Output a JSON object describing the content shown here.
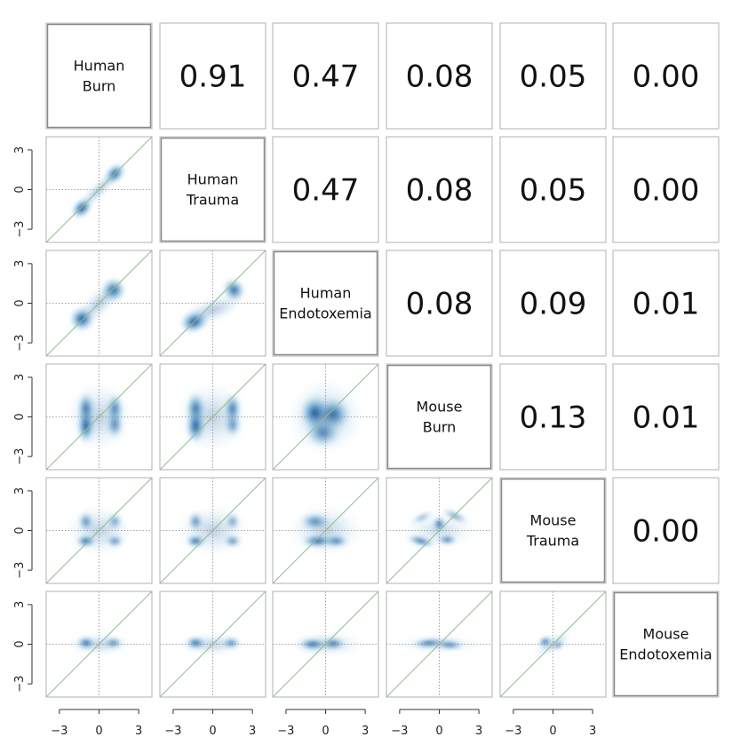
{
  "chart_data": {
    "type": "scatter",
    "subtype": "pairs-matrix-density",
    "title": "",
    "variables": [
      "Human Burn",
      "Human Trauma",
      "Human Endotoxemia",
      "Mouse Burn",
      "Mouse Trauma",
      "Mouse Endotoxemia"
    ],
    "diagonal_labels": [
      [
        "Human",
        "Burn"
      ],
      [
        "Human",
        "Trauma"
      ],
      [
        "Human",
        "Endotoxemia"
      ],
      [
        "Mouse",
        "Burn"
      ],
      [
        "Mouse",
        "Trauma"
      ],
      [
        "Mouse",
        "Endotoxemia"
      ]
    ],
    "upper_triangle_values": [
      {
        "row": 1,
        "col": 2,
        "value": "0.91"
      },
      {
        "row": 1,
        "col": 3,
        "value": "0.47"
      },
      {
        "row": 1,
        "col": 4,
        "value": "0.08"
      },
      {
        "row": 1,
        "col": 5,
        "value": "0.05"
      },
      {
        "row": 1,
        "col": 6,
        "value": "0.00"
      },
      {
        "row": 2,
        "col": 3,
        "value": "0.47"
      },
      {
        "row": 2,
        "col": 4,
        "value": "0.08"
      },
      {
        "row": 2,
        "col": 5,
        "value": "0.05"
      },
      {
        "row": 2,
        "col": 6,
        "value": "0.00"
      },
      {
        "row": 3,
        "col": 4,
        "value": "0.08"
      },
      {
        "row": 3,
        "col": 5,
        "value": "0.09"
      },
      {
        "row": 3,
        "col": 6,
        "value": "0.01"
      },
      {
        "row": 4,
        "col": 5,
        "value": "0.13"
      },
      {
        "row": 4,
        "col": 6,
        "value": "0.01"
      },
      {
        "row": 5,
        "col": 6,
        "value": "0.00"
      }
    ],
    "lower_triangle": "smoothed scatter density (blue), reference line y = x (green), dotted zero lines",
    "axes": {
      "xlim": [
        -4,
        4
      ],
      "ylim": [
        -4,
        4
      ],
      "ticks": [
        -3,
        0,
        3
      ],
      "tick_labels": [
        "−3",
        "0",
        "3"
      ]
    },
    "colors": {
      "density": "#08306b",
      "density_light": "#c6dbef",
      "identity_line": "#8fbf8f",
      "zero_line": "#888888",
      "frame": "#9a9a9a"
    }
  }
}
